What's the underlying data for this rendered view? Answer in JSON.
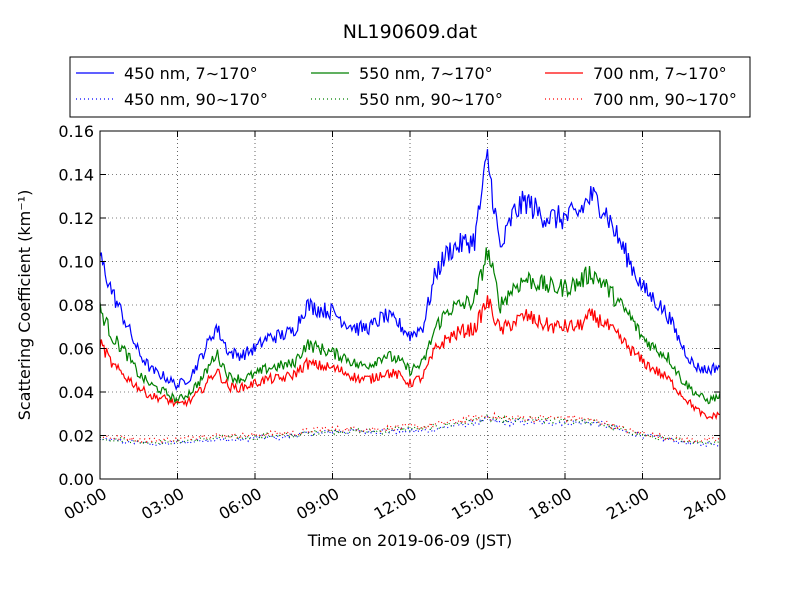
{
  "chart_data": {
    "type": "line",
    "title": "NL190609.dat",
    "xlabel": "Time on 2019-06-09 (JST)",
    "ylabel": "Scattering Coefficient (km⁻¹)",
    "xlim": [
      "00:00",
      "24:00"
    ],
    "ylim": [
      0,
      0.16
    ],
    "x_ticks": [
      "00:00",
      "03:00",
      "06:00",
      "09:00",
      "12:00",
      "15:00",
      "18:00",
      "21:00",
      "24:00"
    ],
    "y_ticks": [
      "0.00",
      "0.02",
      "0.04",
      "0.06",
      "0.08",
      "0.10",
      "0.12",
      "0.14",
      "0.16"
    ],
    "grid": true,
    "legend_position": "top",
    "x": [
      "00:00",
      "00:30",
      "01:00",
      "01:30",
      "02:00",
      "02:30",
      "03:00",
      "03:30",
      "04:00",
      "04:30",
      "05:00",
      "05:30",
      "06:00",
      "06:30",
      "07:00",
      "07:30",
      "08:00",
      "08:30",
      "09:00",
      "09:30",
      "10:00",
      "10:30",
      "11:00",
      "11:30",
      "12:00",
      "12:30",
      "13:00",
      "13:30",
      "14:00",
      "14:30",
      "15:00",
      "15:30",
      "16:00",
      "16:30",
      "17:00",
      "17:30",
      "18:00",
      "18:30",
      "19:00",
      "19:30",
      "20:00",
      "20:30",
      "21:00",
      "21:30",
      "22:00",
      "22:30",
      "23:00",
      "23:30",
      "24:00"
    ],
    "series": [
      {
        "name": "450 nm, 7∼170°",
        "color": "#0000ff",
        "style": "solid",
        "values": [
          0.102,
          0.085,
          0.072,
          0.058,
          0.05,
          0.047,
          0.043,
          0.047,
          0.058,
          0.07,
          0.058,
          0.057,
          0.06,
          0.065,
          0.066,
          0.068,
          0.08,
          0.078,
          0.077,
          0.072,
          0.069,
          0.07,
          0.075,
          0.072,
          0.066,
          0.07,
          0.095,
          0.105,
          0.108,
          0.11,
          0.148,
          0.105,
          0.122,
          0.128,
          0.122,
          0.12,
          0.12,
          0.122,
          0.13,
          0.125,
          0.112,
          0.1,
          0.088,
          0.082,
          0.075,
          0.062,
          0.052,
          0.05,
          0.052
        ]
      },
      {
        "name": "550 nm, 7∼170°",
        "color": "#008000",
        "style": "solid",
        "values": [
          0.078,
          0.065,
          0.058,
          0.048,
          0.043,
          0.04,
          0.036,
          0.04,
          0.047,
          0.058,
          0.047,
          0.046,
          0.048,
          0.051,
          0.052,
          0.053,
          0.062,
          0.06,
          0.058,
          0.056,
          0.052,
          0.053,
          0.057,
          0.055,
          0.05,
          0.053,
          0.07,
          0.078,
          0.08,
          0.082,
          0.105,
          0.08,
          0.088,
          0.092,
          0.09,
          0.088,
          0.088,
          0.09,
          0.095,
          0.09,
          0.082,
          0.075,
          0.065,
          0.06,
          0.056,
          0.046,
          0.04,
          0.036,
          0.038
        ]
      },
      {
        "name": "700 nm, 7∼170°",
        "color": "#ff0000",
        "style": "solid",
        "values": [
          0.063,
          0.052,
          0.047,
          0.042,
          0.038,
          0.037,
          0.034,
          0.036,
          0.042,
          0.05,
          0.042,
          0.042,
          0.044,
          0.046,
          0.046,
          0.048,
          0.053,
          0.052,
          0.051,
          0.049,
          0.046,
          0.046,
          0.049,
          0.048,
          0.044,
          0.047,
          0.06,
          0.065,
          0.068,
          0.069,
          0.082,
          0.068,
          0.072,
          0.075,
          0.072,
          0.07,
          0.07,
          0.07,
          0.075,
          0.072,
          0.066,
          0.06,
          0.054,
          0.05,
          0.046,
          0.039,
          0.033,
          0.028,
          0.03
        ]
      },
      {
        "name": "450 nm, 90∼170°",
        "color": "#0000ff",
        "style": "dotted",
        "values": [
          0.018,
          0.018,
          0.017,
          0.017,
          0.016,
          0.016,
          0.017,
          0.017,
          0.018,
          0.018,
          0.018,
          0.018,
          0.019,
          0.019,
          0.019,
          0.02,
          0.021,
          0.021,
          0.022,
          0.022,
          0.022,
          0.022,
          0.022,
          0.022,
          0.022,
          0.022,
          0.023,
          0.024,
          0.025,
          0.026,
          0.027,
          0.026,
          0.026,
          0.026,
          0.026,
          0.026,
          0.026,
          0.026,
          0.026,
          0.025,
          0.023,
          0.021,
          0.02,
          0.019,
          0.018,
          0.017,
          0.016,
          0.016,
          0.016
        ]
      },
      {
        "name": "550 nm, 90∼170°",
        "color": "#008000",
        "style": "dotted",
        "values": [
          0.019,
          0.018,
          0.018,
          0.017,
          0.017,
          0.017,
          0.017,
          0.018,
          0.018,
          0.019,
          0.019,
          0.019,
          0.019,
          0.02,
          0.02,
          0.02,
          0.021,
          0.022,
          0.022,
          0.022,
          0.022,
          0.022,
          0.022,
          0.023,
          0.023,
          0.023,
          0.024,
          0.025,
          0.026,
          0.027,
          0.028,
          0.027,
          0.027,
          0.027,
          0.027,
          0.027,
          0.027,
          0.027,
          0.026,
          0.025,
          0.023,
          0.022,
          0.02,
          0.019,
          0.018,
          0.018,
          0.017,
          0.017,
          0.017
        ]
      },
      {
        "name": "700 nm, 90∼170°",
        "color": "#ff0000",
        "style": "dotted",
        "values": [
          0.02,
          0.019,
          0.019,
          0.018,
          0.018,
          0.018,
          0.018,
          0.019,
          0.02,
          0.02,
          0.02,
          0.02,
          0.02,
          0.021,
          0.021,
          0.021,
          0.022,
          0.023,
          0.023,
          0.023,
          0.023,
          0.023,
          0.023,
          0.024,
          0.024,
          0.024,
          0.025,
          0.026,
          0.027,
          0.028,
          0.029,
          0.028,
          0.028,
          0.028,
          0.028,
          0.028,
          0.028,
          0.028,
          0.027,
          0.026,
          0.024,
          0.022,
          0.021,
          0.02,
          0.019,
          0.018,
          0.018,
          0.018,
          0.018
        ]
      }
    ]
  }
}
